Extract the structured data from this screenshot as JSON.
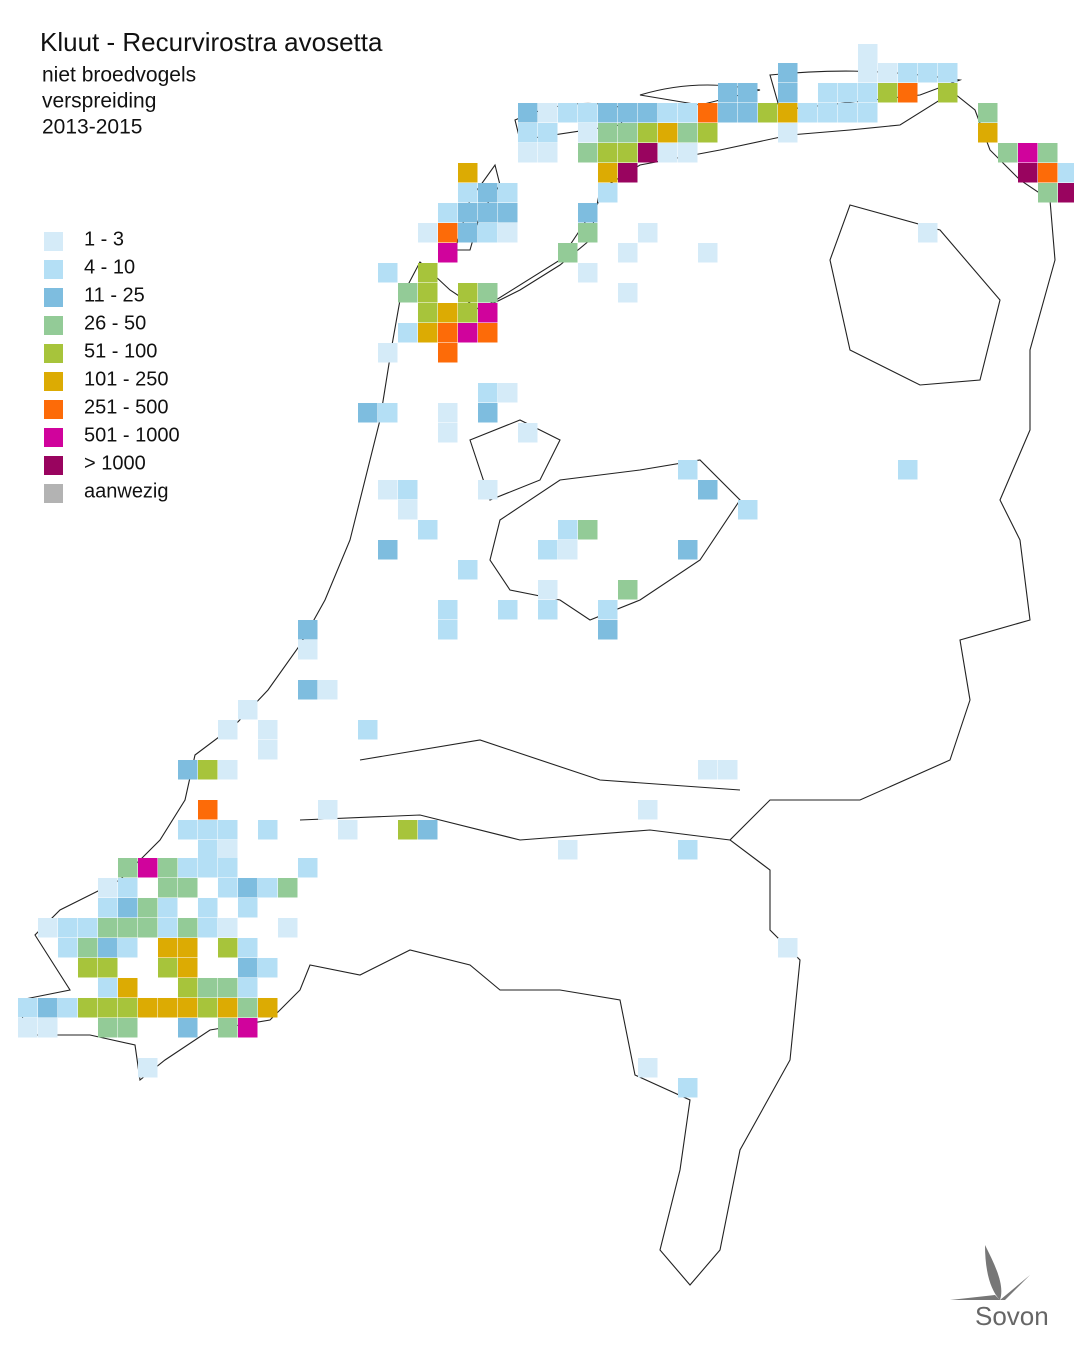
{
  "title": "Kluut - Recurvirostra avosetta",
  "subtitle": [
    "niet broedvogels",
    "verspreiding",
    "2013-2015"
  ],
  "legend": [
    {
      "label": "1 - 3",
      "color": "#d5ebf8"
    },
    {
      "label": "4 - 10",
      "color": "#b4dff5"
    },
    {
      "label": "11 - 25",
      "color": "#7ebddf"
    },
    {
      "label": "26 - 50",
      "color": "#93cb97"
    },
    {
      "label": "51 - 100",
      "color": "#a7c43b"
    },
    {
      "label": "101 - 250",
      "color": "#dcab03"
    },
    {
      "label": "251 - 500",
      "color": "#fd6b08"
    },
    {
      "label": "501 - 1000",
      "color": "#d0039c"
    },
    {
      "label": "> 1000",
      "color": "#99045f"
    },
    {
      "label": "aanwezig",
      "color": "#b3b3b3"
    }
  ],
  "logo": "Sovon"
}
